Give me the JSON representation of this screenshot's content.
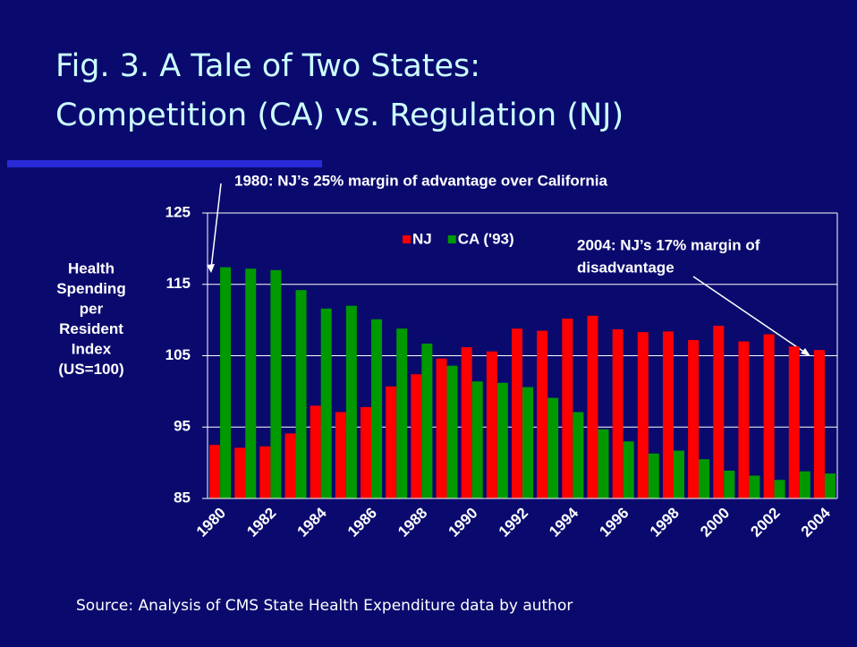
{
  "chart_data": {
    "type": "bar",
    "title": [
      "Fig. 3. A Tale of Two States:",
      "Competition (CA) vs. Regulation (NJ)"
    ],
    "y_label": [
      "Health",
      "Spending",
      "per",
      "Resident",
      "Index",
      "(US=100)"
    ],
    "annotations": [
      "1980: NJ’s 25% margin of advantage over California",
      "2004: NJ’s 17% margin of",
      "disadvantage"
    ],
    "source": "Source: Analysis of CMS State Health Expenditure data by author",
    "categories": [
      "1980",
      null,
      "1982",
      null,
      "1984",
      null,
      "1986",
      null,
      "1988",
      null,
      "1990",
      null,
      "1992",
      null,
      "1994",
      null,
      "1996",
      null,
      "1998",
      null,
      "2000",
      null,
      "2002",
      null,
      "2004"
    ],
    "series": [
      {
        "name": "NJ",
        "color": "#ff0000",
        "values": [
          92.5,
          92.1,
          92.3,
          94.1,
          98.0,
          97.1,
          97.8,
          100.7,
          102.4,
          104.6,
          106.2,
          105.6,
          108.8,
          108.5,
          110.2,
          110.6,
          108.7,
          108.3,
          108.4,
          107.2,
          109.2,
          107.0,
          108.0,
          106.3,
          105.8
        ]
      },
      {
        "name": "CA ('93)",
        "color": "#009900",
        "values": [
          117.4,
          117.2,
          117.0,
          114.2,
          111.6,
          112.0,
          110.1,
          108.8,
          106.7,
          103.6,
          101.4,
          101.2,
          100.6,
          99.1,
          97.1,
          94.7,
          93.0,
          91.3,
          91.7,
          90.5,
          88.9,
          88.2,
          87.6,
          88.8,
          88.5
        ]
      }
    ],
    "ylim": [
      85,
      125
    ],
    "yticks": [
      85,
      95,
      105,
      115,
      125
    ],
    "grid": true,
    "legend": "top"
  }
}
